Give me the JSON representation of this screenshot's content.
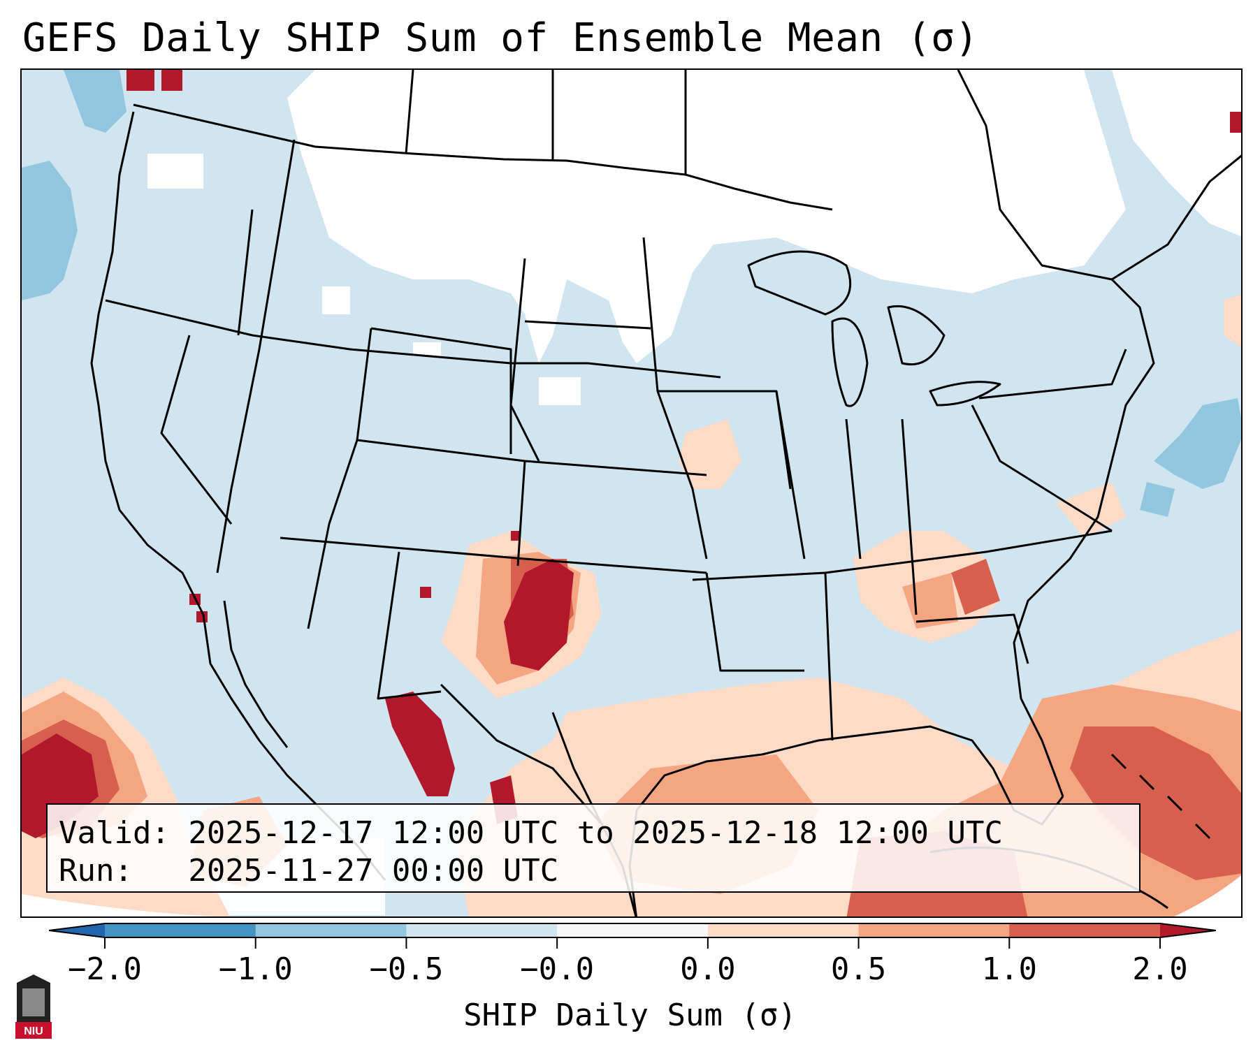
{
  "title": "GEFS Daily SHIP Sum of Ensemble Mean (σ)",
  "info": {
    "valid_line": "Valid: 2025-12-17 12:00 UTC to 2025-12-18 12:00 UTC",
    "run_line": "Run:   2025-11-27 00:00 UTC"
  },
  "colorbar": {
    "label": "SHIP Daily Sum (σ)",
    "ticks": [
      "−2.0",
      "−1.0",
      "−0.5",
      "−0.0",
      "0.0",
      "0.5",
      "1.0",
      "2.0"
    ],
    "colors": [
      "#4393c3",
      "#92c5de",
      "#d1e5f0",
      "#f7f7f7",
      "#fddbc7",
      "#f4a582",
      "#d6604d"
    ],
    "under_color": "#2166ac",
    "over_color": "#b2182b"
  },
  "colors": {
    "background_field": "#d1e5f0",
    "near_zero": "#ffffff",
    "light_blue": "#92c5de",
    "light_red": "#fddbc7",
    "mid_red": "#f4a582",
    "red": "#d6604d",
    "dark_red": "#b2182b",
    "boundaries": "#000000"
  },
  "logo": {
    "text": "NIU"
  }
}
